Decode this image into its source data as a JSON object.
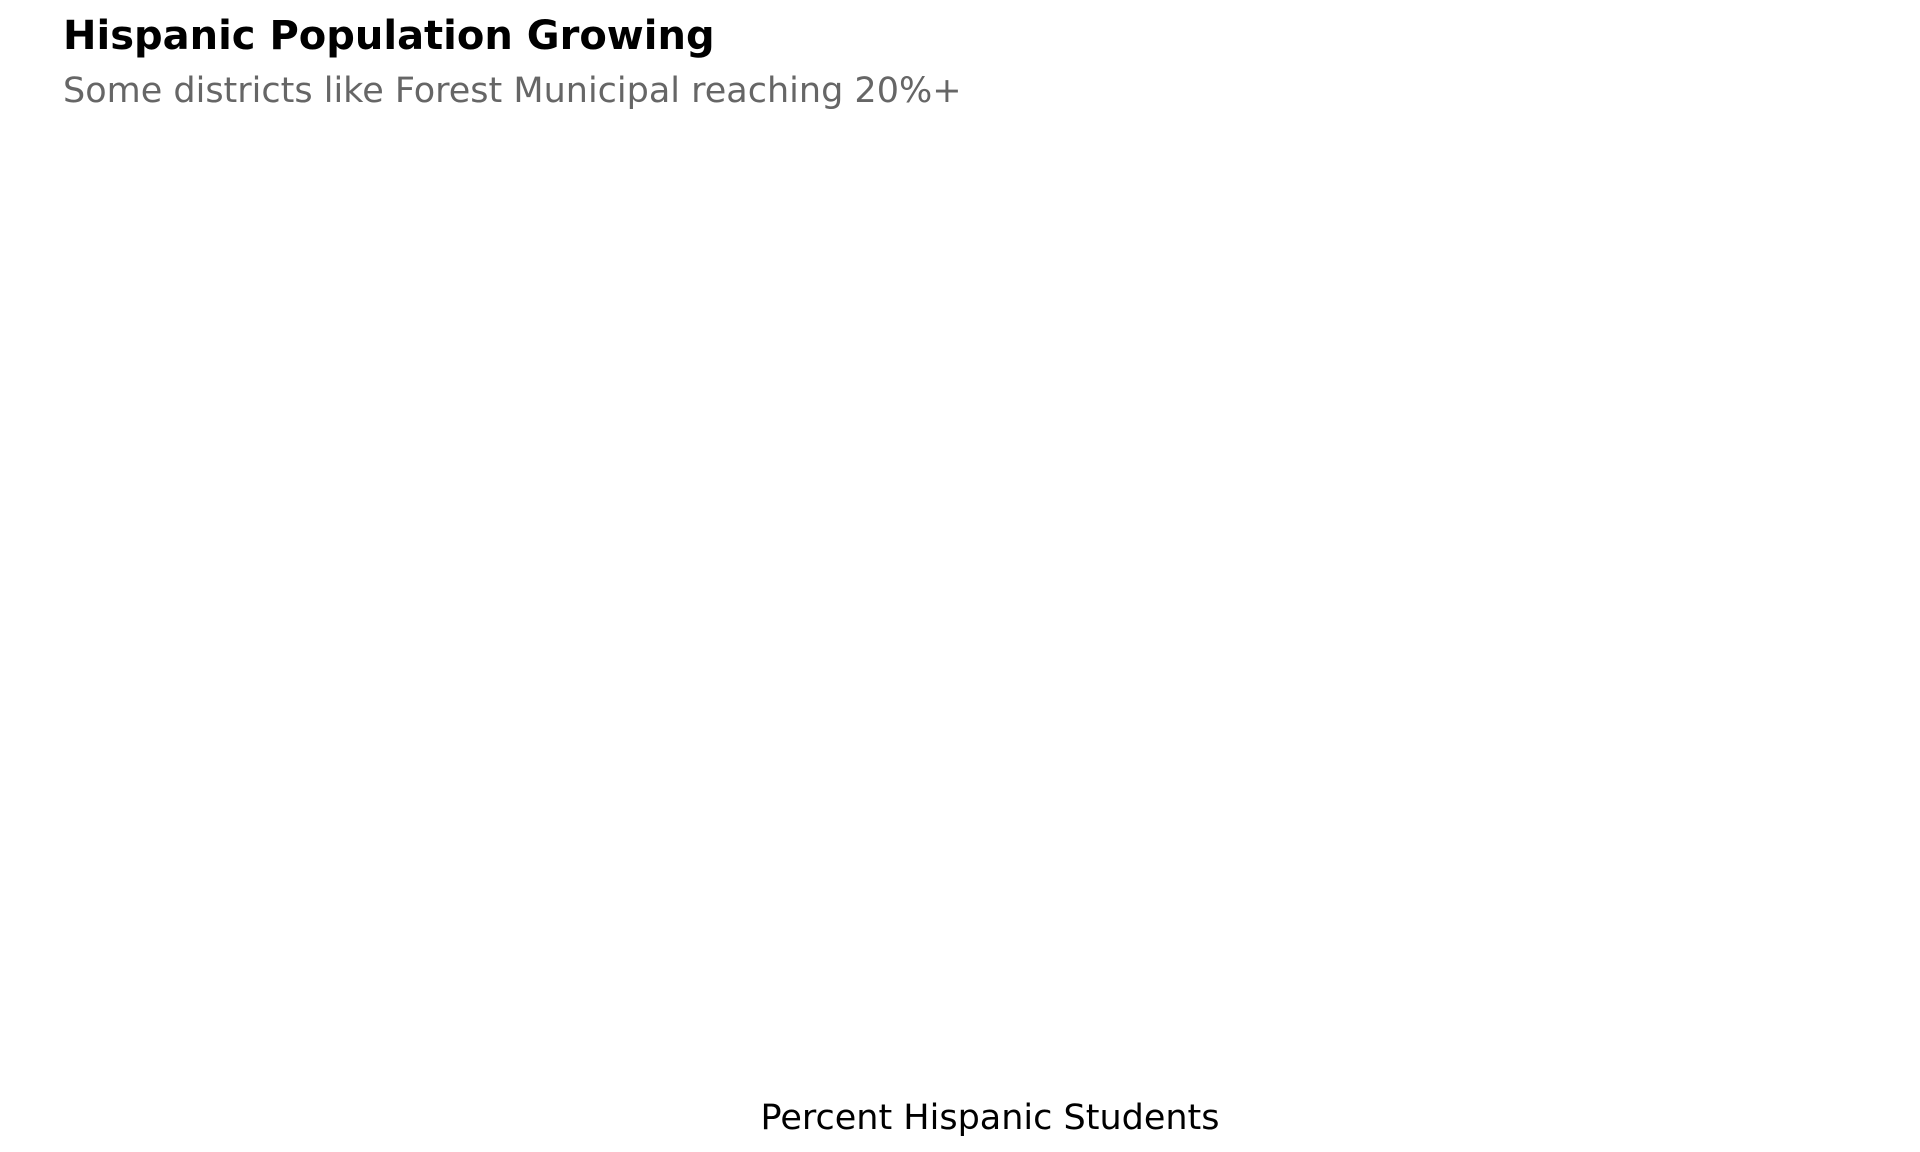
{
  "chart_data": {
    "type": "bar",
    "title": "Hispanic Population Growing",
    "subtitle": "Some districts like Forest Municipal reaching 20%+",
    "xlabel": "Percent Hispanic Students",
    "ylabel": "",
    "categories": [],
    "values": [],
    "grid": false,
    "legend": "none"
  }
}
